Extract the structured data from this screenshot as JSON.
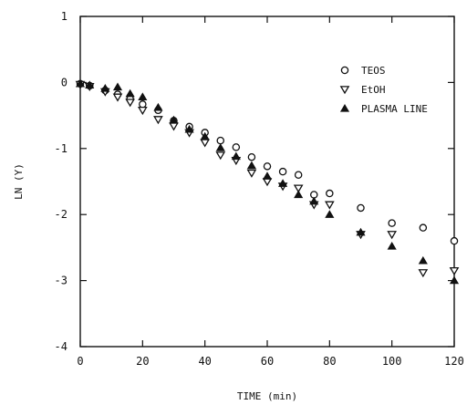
{
  "chart_data": {
    "type": "scatter",
    "title": "",
    "xlabel": "TIME (min)",
    "ylabel": "LN (Y)",
    "xlim": [
      0,
      120
    ],
    "ylim": [
      -4,
      1
    ],
    "x_ticks": [
      0,
      20,
      40,
      60,
      80,
      100,
      120
    ],
    "y_ticks": [
      1,
      0,
      -1,
      -2,
      -3,
      -4
    ],
    "grid": false,
    "legend_position": "top-right",
    "series": [
      {
        "name": "TEOS",
        "marker": "circle-open",
        "points": [
          {
            "x": 0,
            "y": -0.02
          },
          {
            "x": 3,
            "y": -0.05
          },
          {
            "x": 8,
            "y": -0.12
          },
          {
            "x": 12,
            "y": -0.18
          },
          {
            "x": 16,
            "y": -0.25
          },
          {
            "x": 20,
            "y": -0.33
          },
          {
            "x": 25,
            "y": -0.42
          },
          {
            "x": 30,
            "y": -0.58
          },
          {
            "x": 35,
            "y": -0.67
          },
          {
            "x": 40,
            "y": -0.76
          },
          {
            "x": 45,
            "y": -0.88
          },
          {
            "x": 50,
            "y": -0.98
          },
          {
            "x": 55,
            "y": -1.13
          },
          {
            "x": 60,
            "y": -1.27
          },
          {
            "x": 65,
            "y": -1.35
          },
          {
            "x": 70,
            "y": -1.4
          },
          {
            "x": 75,
            "y": -1.7
          },
          {
            "x": 80,
            "y": -1.68
          },
          {
            "x": 90,
            "y": -1.9
          },
          {
            "x": 100,
            "y": -2.13
          },
          {
            "x": 110,
            "y": -2.2
          },
          {
            "x": 120,
            "y": -2.4
          }
        ]
      },
      {
        "name": "EtOH",
        "marker": "triangle-down-open",
        "points": [
          {
            "x": 0,
            "y": -0.03
          },
          {
            "x": 3,
            "y": -0.06
          },
          {
            "x": 8,
            "y": -0.14
          },
          {
            "x": 12,
            "y": -0.22
          },
          {
            "x": 16,
            "y": -0.3
          },
          {
            "x": 20,
            "y": -0.42
          },
          {
            "x": 25,
            "y": -0.56
          },
          {
            "x": 30,
            "y": -0.66
          },
          {
            "x": 35,
            "y": -0.76
          },
          {
            "x": 40,
            "y": -0.91
          },
          {
            "x": 45,
            "y": -1.1
          },
          {
            "x": 50,
            "y": -1.18
          },
          {
            "x": 55,
            "y": -1.37
          },
          {
            "x": 60,
            "y": -1.5
          },
          {
            "x": 65,
            "y": -1.57
          },
          {
            "x": 70,
            "y": -1.6
          },
          {
            "x": 75,
            "y": -1.85
          },
          {
            "x": 80,
            "y": -1.85
          },
          {
            "x": 90,
            "y": -2.3
          },
          {
            "x": 100,
            "y": -2.3
          },
          {
            "x": 110,
            "y": -2.88
          },
          {
            "x": 120,
            "y": -2.85
          }
        ]
      },
      {
        "name": "PLASMA LINE",
        "marker": "triangle-up-filled",
        "points": [
          {
            "x": 0,
            "y": -0.02
          },
          {
            "x": 3,
            "y": -0.04
          },
          {
            "x": 8,
            "y": -0.09
          },
          {
            "x": 12,
            "y": -0.07
          },
          {
            "x": 16,
            "y": -0.17
          },
          {
            "x": 20,
            "y": -0.22
          },
          {
            "x": 25,
            "y": -0.38
          },
          {
            "x": 30,
            "y": -0.57
          },
          {
            "x": 35,
            "y": -0.71
          },
          {
            "x": 40,
            "y": -0.82
          },
          {
            "x": 45,
            "y": -0.99
          },
          {
            "x": 50,
            "y": -1.12
          },
          {
            "x": 55,
            "y": -1.26
          },
          {
            "x": 60,
            "y": -1.42
          },
          {
            "x": 65,
            "y": -1.53
          },
          {
            "x": 70,
            "y": -1.7
          },
          {
            "x": 75,
            "y": -1.8
          },
          {
            "x": 80,
            "y": -2.0
          },
          {
            "x": 90,
            "y": -2.27
          },
          {
            "x": 100,
            "y": -2.48
          },
          {
            "x": 110,
            "y": -2.7
          },
          {
            "x": 120,
            "y": -3.0
          }
        ]
      }
    ]
  }
}
